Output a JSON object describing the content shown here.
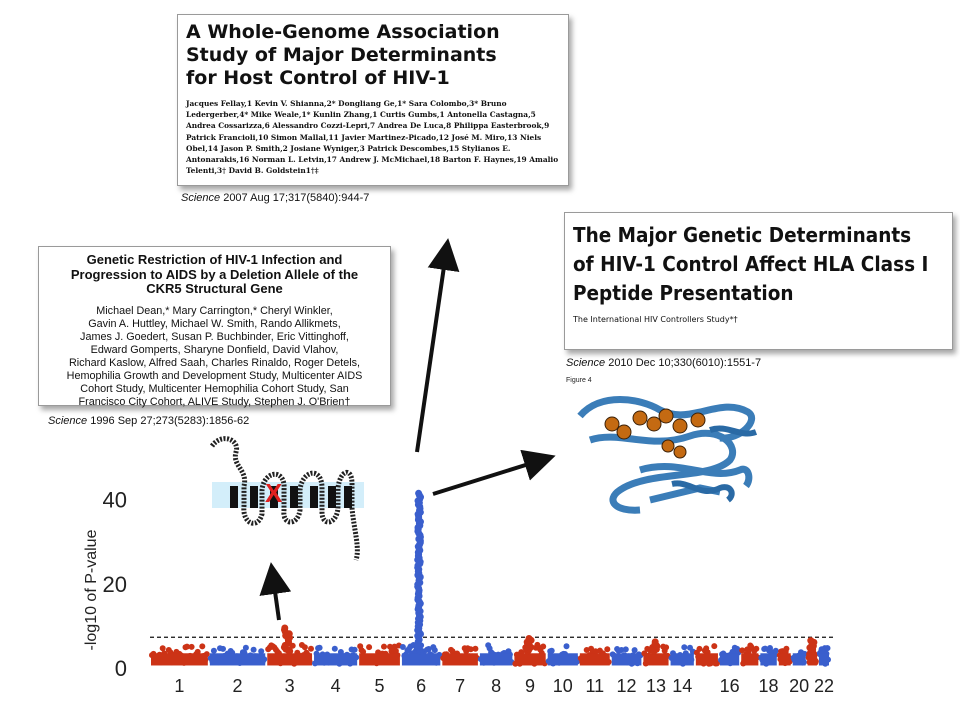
{
  "papers": {
    "p2007": {
      "title": "A Whole-Genome Association\nStudy of Major Determinants\nfor Host Control of HIV-1",
      "authors": "Jacques Fellay,1 Kevin V. Shianna,2* Dongliang Ge,1* Sara Colombo,3* Bruno Ledergerber,4* Mike Weale,1* Kunlin Zhang,1 Curtis Gumbs,1 Antonella Castagna,5 Andrea Cossarizza,6 Alessandro Cozzi-Lepri,7 Andrea De Luca,8 Philippa Easterbrook,9 Patrick Francioli,10 Simon Mallal,11 Javier Martinez-Picado,12 José M. Miro,13 Niels Obel,14 Jason P. Smith,2 Josiane Wyniger,3 Patrick Descombes,15 Stylianos E. Antonarakis,16 Norman L. Letvin,17 Andrew J. McMichael,18 Barton F. Haynes,19 Amalio Telenti,3† David B. Goldstein1†‡",
      "cite_journal": "Science",
      "cite_rest": " 2007 Aug 17;317(5840):944-7"
    },
    "p2010": {
      "title": "The Major Genetic Determinants\nof HIV-1 Control Affect HLA Class I\nPeptide Presentation",
      "authors": "The International HIV Controllers Study*†",
      "cite_journal": "Science",
      "cite_rest": " 2010 Dec 10;330(6010):1551-7",
      "figure_label": "Figure 4"
    },
    "p1996": {
      "title": "Genetic Restriction of HIV-1 Infection and\nProgression to AIDS by a Deletion Allele of the\nCKR5 Structural Gene",
      "authors": "Michael Dean,* Mary Carrington,* Cheryl Winkler,\nGavin A. Huttley, Michael W. Smith, Rando Allikmets,\nJames J. Goedert, Susan P. Buchbinder, Eric Vittinghoff,\nEdward Gomperts, Sharyne Donfield, David Vlahov,\nRichard Kaslow, Alfred Saah, Charles Rinaldo, Roger Detels,\nHemophilia Growth and Development Study, Multicenter AIDS\nCohort Study, Multicenter Hemophilia Cohort Study, San\nFrancisco City Cohort, ALIVE Study, Stephen J. O'Brien†",
      "cite_journal": "Science",
      "cite_rest": " 1996 Sep 27;273(5283):1856-62",
      "deletion_mark": "X"
    }
  },
  "colors": {
    "red": "#cc3316",
    "blue": "#3a5fcd",
    "arrow": "#111111",
    "protein": "#3b7db8",
    "ligand": "#c46a12",
    "membrane": "#d3eefa"
  },
  "chart_data": {
    "type": "scatter",
    "title": "",
    "xlabel": "",
    "ylabel": "-log10 of P-value",
    "ylim": [
      0,
      45
    ],
    "yticks": [
      0,
      20,
      40
    ],
    "threshold": 7.3,
    "threshold_style": "dashed",
    "legend": "none",
    "chromosome_labels": [
      "1",
      "2",
      "3",
      "4",
      "5",
      "6",
      "7",
      "8",
      "9",
      "10",
      "11",
      "12",
      "13",
      "14",
      "16",
      "18",
      "20",
      "22"
    ],
    "chromosomes": [
      {
        "chr": "1",
        "color": "red",
        "max": 5.2
      },
      {
        "chr": "2",
        "color": "blue",
        "max": 5.0
      },
      {
        "chr": "3",
        "color": "red",
        "max": 9.5
      },
      {
        "chr": "4",
        "color": "blue",
        "max": 5.5
      },
      {
        "chr": "5",
        "color": "red",
        "max": 5.8
      },
      {
        "chr": "6",
        "color": "blue",
        "max": 41.5
      },
      {
        "chr": "7",
        "color": "red",
        "max": 5.0
      },
      {
        "chr": "8",
        "color": "blue",
        "max": 5.6
      },
      {
        "chr": "9",
        "color": "red",
        "max": 7.0
      },
      {
        "chr": "10",
        "color": "blue",
        "max": 5.4
      },
      {
        "chr": "11",
        "color": "red",
        "max": 5.0
      },
      {
        "chr": "12",
        "color": "blue",
        "max": 5.5
      },
      {
        "chr": "13",
        "color": "red",
        "max": 6.2
      },
      {
        "chr": "14",
        "color": "blue",
        "max": 5.0
      },
      {
        "chr": "15",
        "color": "red",
        "max": 5.2
      },
      {
        "chr": "16",
        "color": "blue",
        "max": 5.0
      },
      {
        "chr": "17",
        "color": "red",
        "max": 5.6
      },
      {
        "chr": "18",
        "color": "blue",
        "max": 4.8
      },
      {
        "chr": "19",
        "color": "red",
        "max": 4.6
      },
      {
        "chr": "20",
        "color": "blue",
        "max": 5.0
      },
      {
        "chr": "21",
        "color": "red",
        "max": 6.5
      },
      {
        "chr": "22",
        "color": "blue",
        "max": 4.8
      }
    ]
  }
}
